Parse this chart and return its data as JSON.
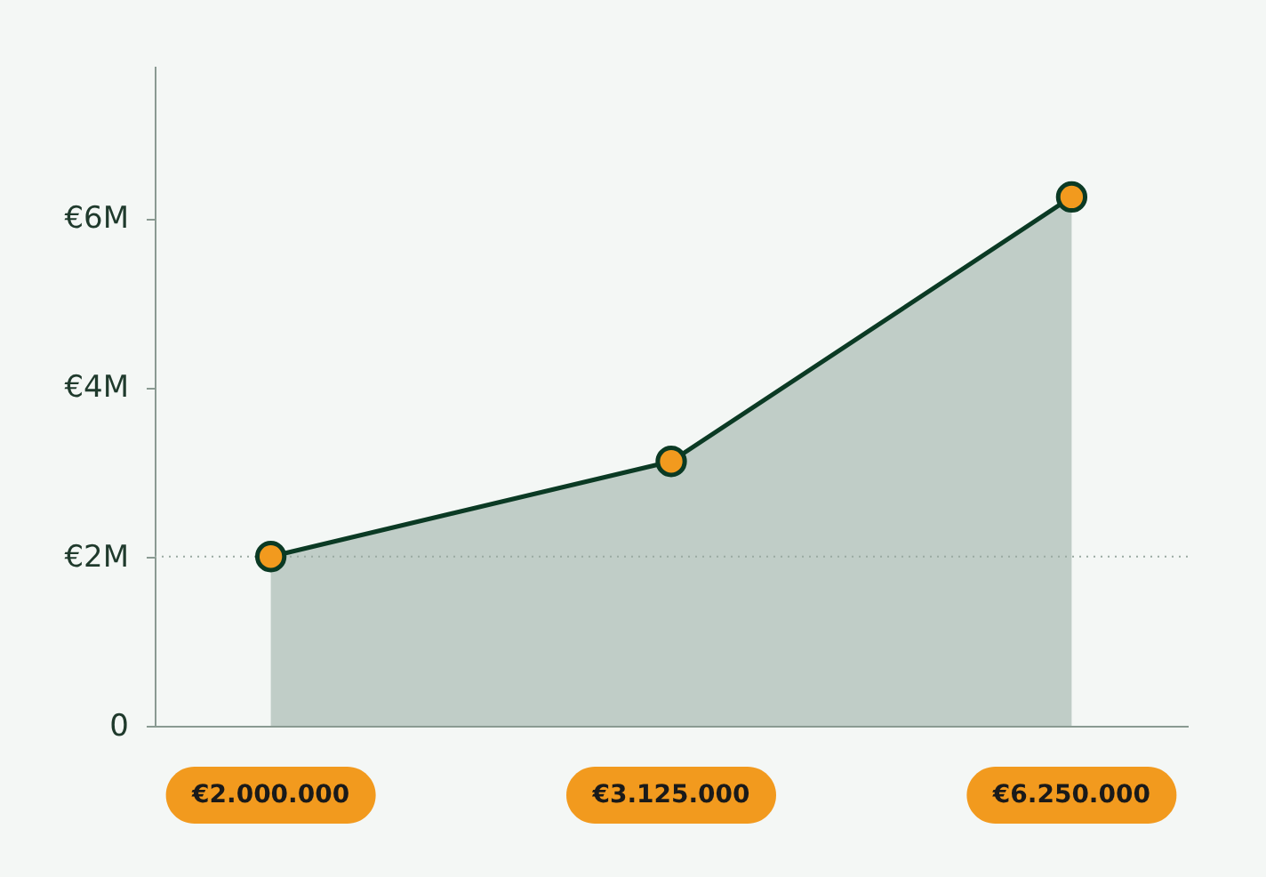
{
  "chart_data": {
    "type": "area",
    "categories": [
      null,
      null,
      null
    ],
    "series": [
      {
        "color": "#0b3a24",
        "values": [
          2000000,
          3125000,
          6250000
        ]
      }
    ],
    "colors": [
      "#f29a1e",
      "#f29a1e",
      "#f29a1e"
    ],
    "value_labels": [
      "€2.000.000",
      "€3.125.000",
      "€6.250.000"
    ],
    "ylim": [
      0,
      7800000
    ],
    "yticks": [
      {
        "value": 0,
        "label": "0"
      },
      {
        "value": 2000000,
        "label": "€2M"
      },
      {
        "value": 4000000,
        "label": "€4M"
      },
      {
        "value": 6000000,
        "label": "€6M"
      }
    ],
    "ref_lines": [
      {
        "axis": "y",
        "value": 2000000,
        "label": null,
        "line_style": "dotted"
      }
    ],
    "marker": "circle",
    "grid": false,
    "tick_labels": "y"
  }
}
